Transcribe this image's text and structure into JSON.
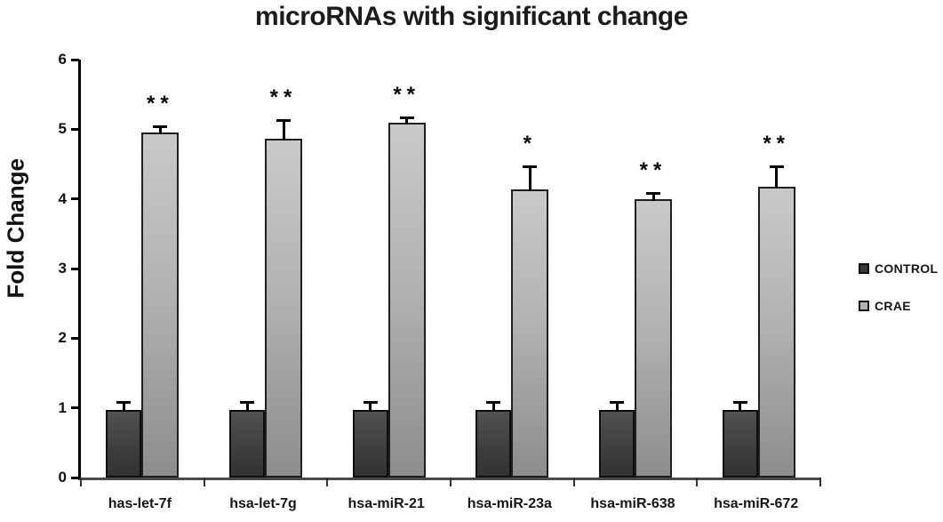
{
  "title": "microRNAs with significant change",
  "y_axis": {
    "label": "Fold Change"
  },
  "legend": {
    "items": [
      {
        "label": "CONTROL",
        "color": "#3a3a3a"
      },
      {
        "label": "CRAE",
        "color": "#b3b3b3"
      }
    ]
  },
  "chart_data": {
    "type": "bar",
    "title": "microRNAs with significant change",
    "xlabel": "",
    "ylabel": "Fold Change",
    "ylim": [
      0,
      6
    ],
    "yticks": [
      0,
      1,
      2,
      3,
      4,
      5,
      6
    ],
    "grid": false,
    "legend_position": "right",
    "categories": [
      "has-let-7f",
      "hsa-let-7g",
      "hsa-miR-21",
      "hsa-miR-23a",
      "hsa-miR-638",
      "hsa-miR-672"
    ],
    "series": [
      {
        "name": "CONTROL",
        "values": [
          0.97,
          0.97,
          0.97,
          0.97,
          0.97,
          0.97
        ],
        "errors": [
          0.1,
          0.1,
          0.1,
          0.1,
          0.1,
          0.1
        ],
        "color": "#3a3a3a"
      },
      {
        "name": "CRAE",
        "values": [
          4.95,
          4.87,
          5.1,
          4.13,
          4.0,
          4.18
        ],
        "errors": [
          0.08,
          0.25,
          0.06,
          0.32,
          0.07,
          0.27
        ],
        "color": "#b3b3b3"
      }
    ],
    "significance": [
      "**",
      "**",
      "**",
      "*",
      "**",
      "**"
    ],
    "significance_on_series": "CRAE"
  }
}
